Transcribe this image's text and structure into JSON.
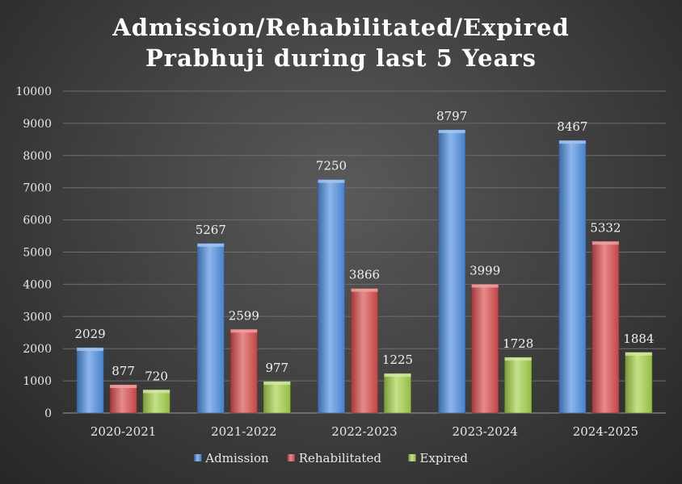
{
  "chart_data": {
    "type": "bar",
    "title": [
      "Admission/Rehabilitated/Expired",
      "Prabhuji during last 5 Years"
    ],
    "categories": [
      "2020-2021",
      "2021-2022",
      "2022-2023",
      "2023-2024",
      "2024-2025"
    ],
    "series": [
      {
        "name": "Admission",
        "values": [
          2029,
          5267,
          7250,
          8797,
          8467
        ],
        "color": "#4f8fe0"
      },
      {
        "name": "Rehabilitated",
        "values": [
          877,
          2599,
          3866,
          3999,
          5332
        ],
        "color": "#d94c4c"
      },
      {
        "name": "Expired",
        "values": [
          720,
          977,
          1225,
          1728,
          1884
        ],
        "color": "#a6d14a"
      }
    ],
    "ylim": [
      0,
      10000
    ],
    "yticks": [
      0,
      1000,
      2000,
      3000,
      4000,
      5000,
      6000,
      7000,
      8000,
      9000,
      10000
    ],
    "grid": true,
    "data_labels": true,
    "legend": "bottom"
  }
}
